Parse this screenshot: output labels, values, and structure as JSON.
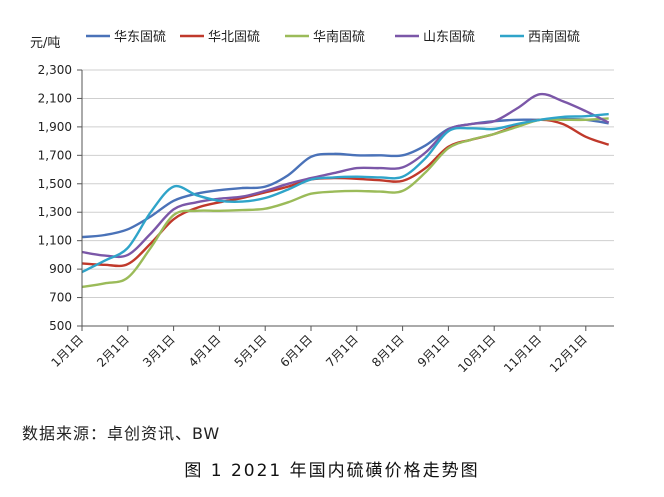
{
  "chart_data": {
    "type": "line",
    "ylabel": "元/吨",
    "ylim": [
      500,
      2300
    ],
    "yticks": [
      500,
      700,
      900,
      1100,
      1300,
      1500,
      1700,
      1900,
      2100,
      2300
    ],
    "ytick_labels": [
      "500",
      "700",
      "900",
      "1,100",
      "1,300",
      "1,500",
      "1,700",
      "1,900",
      "2,100",
      "2,300"
    ],
    "categories": [
      "1月1日",
      "2月1日",
      "3月1日",
      "4月1日",
      "5月1日",
      "6月1日",
      "7月1日",
      "8月1日",
      "9月1日",
      "10月1日",
      "11月1日",
      "12月1日"
    ],
    "legend_position": "top",
    "grid": true,
    "series": [
      {
        "name": "华东固硫",
        "color": "#4a72b8",
        "points": [
          [
            0,
            1125
          ],
          [
            0.5,
            1140
          ],
          [
            1,
            1180
          ],
          [
            1.5,
            1270
          ],
          [
            2,
            1380
          ],
          [
            2.5,
            1430
          ],
          [
            3,
            1455
          ],
          [
            3.5,
            1470
          ],
          [
            4,
            1480
          ],
          [
            4.5,
            1560
          ],
          [
            5,
            1690
          ],
          [
            5.5,
            1710
          ],
          [
            6,
            1700
          ],
          [
            6.5,
            1700
          ],
          [
            7,
            1700
          ],
          [
            7.5,
            1770
          ],
          [
            8,
            1885
          ],
          [
            8.5,
            1920
          ],
          [
            9,
            1940
          ],
          [
            9.5,
            1950
          ],
          [
            10,
            1950
          ],
          [
            10.5,
            1955
          ],
          [
            11,
            1950
          ],
          [
            11.5,
            1925
          ]
        ]
      },
      {
        "name": "华北固硫",
        "color": "#c0392b",
        "points": [
          [
            0,
            940
          ],
          [
            0.5,
            930
          ],
          [
            1,
            935
          ],
          [
            1.5,
            1080
          ],
          [
            2,
            1250
          ],
          [
            2.5,
            1330
          ],
          [
            3,
            1370
          ],
          [
            3.5,
            1400
          ],
          [
            4,
            1440
          ],
          [
            4.5,
            1480
          ],
          [
            5,
            1530
          ],
          [
            5.5,
            1540
          ],
          [
            6,
            1535
          ],
          [
            6.5,
            1525
          ],
          [
            7,
            1520
          ],
          [
            7.5,
            1610
          ],
          [
            8,
            1760
          ],
          [
            8.5,
            1810
          ],
          [
            9,
            1850
          ],
          [
            9.5,
            1910
          ],
          [
            10,
            1950
          ],
          [
            10.5,
            1920
          ],
          [
            11,
            1830
          ],
          [
            11.5,
            1775
          ]
        ]
      },
      {
        "name": "华南固硫",
        "color": "#9bbb59",
        "points": [
          [
            0,
            775
          ],
          [
            0.5,
            800
          ],
          [
            1,
            840
          ],
          [
            1.5,
            1050
          ],
          [
            2,
            1280
          ],
          [
            2.5,
            1310
          ],
          [
            3,
            1310
          ],
          [
            3.5,
            1315
          ],
          [
            4,
            1325
          ],
          [
            4.5,
            1370
          ],
          [
            5,
            1430
          ],
          [
            5.5,
            1445
          ],
          [
            6,
            1450
          ],
          [
            6.5,
            1445
          ],
          [
            7,
            1450
          ],
          [
            7.5,
            1580
          ],
          [
            8,
            1750
          ],
          [
            8.5,
            1810
          ],
          [
            9,
            1850
          ],
          [
            9.5,
            1900
          ],
          [
            10,
            1950
          ],
          [
            10.5,
            1950
          ],
          [
            11,
            1950
          ],
          [
            11.5,
            1960
          ]
        ]
      },
      {
        "name": "山东固硫",
        "color": "#7b57a8",
        "points": [
          [
            0,
            1020
          ],
          [
            0.5,
            995
          ],
          [
            1,
            1000
          ],
          [
            1.5,
            1150
          ],
          [
            2,
            1320
          ],
          [
            2.5,
            1370
          ],
          [
            3,
            1395
          ],
          [
            3.5,
            1410
          ],
          [
            4,
            1450
          ],
          [
            4.5,
            1500
          ],
          [
            5,
            1540
          ],
          [
            5.5,
            1575
          ],
          [
            6,
            1610
          ],
          [
            6.5,
            1610
          ],
          [
            7,
            1615
          ],
          [
            7.5,
            1720
          ],
          [
            8,
            1880
          ],
          [
            8.5,
            1920
          ],
          [
            9,
            1940
          ],
          [
            9.5,
            2030
          ],
          [
            10,
            2130
          ],
          [
            10.5,
            2080
          ],
          [
            11,
            2010
          ],
          [
            11.5,
            1930
          ]
        ]
      },
      {
        "name": "西南固硫",
        "color": "#2fa4c9",
        "points": [
          [
            0,
            880
          ],
          [
            0.5,
            960
          ],
          [
            1,
            1050
          ],
          [
            1.5,
            1300
          ],
          [
            2,
            1480
          ],
          [
            2.5,
            1420
          ],
          [
            3,
            1380
          ],
          [
            3.5,
            1375
          ],
          [
            4,
            1400
          ],
          [
            4.5,
            1460
          ],
          [
            5,
            1530
          ],
          [
            5.5,
            1545
          ],
          [
            6,
            1550
          ],
          [
            6.5,
            1545
          ],
          [
            7,
            1550
          ],
          [
            7.5,
            1680
          ],
          [
            8,
            1870
          ],
          [
            8.5,
            1890
          ],
          [
            9,
            1885
          ],
          [
            9.5,
            1920
          ],
          [
            10,
            1950
          ],
          [
            10.5,
            1970
          ],
          [
            11,
            1975
          ],
          [
            11.5,
            1990
          ]
        ]
      }
    ]
  },
  "footer": {
    "source": "数据来源：卓创资讯、BW",
    "caption": "图 1  2021 年国内硫磺价格走势图"
  }
}
